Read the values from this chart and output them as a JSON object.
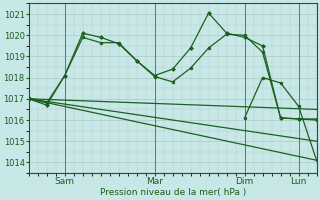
{
  "background_color": "#c8e8e8",
  "plot_bg_color": "#c8e8e8",
  "grid_color": "#b0c8c8",
  "line_color": "#1a6020",
  "xlabel": "Pression niveau de la mer( hPa )",
  "ylim": [
    1013.5,
    1021.5
  ],
  "yticks": [
    1014,
    1015,
    1016,
    1017,
    1018,
    1019,
    1020,
    1021
  ],
  "xlim": [
    0,
    96
  ],
  "series": [
    {
      "x": [
        0,
        96
      ],
      "y": [
        1017.0,
        1014.1
      ],
      "marker": null,
      "linewidth": 0.9
    },
    {
      "x": [
        0,
        96
      ],
      "y": [
        1017.0,
        1015.0
      ],
      "marker": null,
      "linewidth": 0.9
    },
    {
      "x": [
        0,
        96
      ],
      "y": [
        1017.0,
        1016.5
      ],
      "marker": null,
      "linewidth": 0.9
    },
    {
      "x": [
        0,
        6,
        12,
        18,
        24,
        30,
        36,
        42,
        48,
        54,
        60,
        66,
        72,
        78,
        84,
        90,
        96
      ],
      "y": [
        1017.0,
        1016.7,
        1018.1,
        1020.1,
        1019.9,
        1019.6,
        1018.8,
        1018.1,
        1018.4,
        1019.4,
        1021.05,
        1020.1,
        1019.9,
        1019.5,
        1016.1,
        1016.05,
        1016.0
      ],
      "marker": "D",
      "markersize": 2.0,
      "linewidth": 0.9
    },
    {
      "x": [
        0,
        6,
        12,
        18,
        24,
        30,
        36,
        42,
        48,
        54,
        60,
        66,
        72,
        78,
        84,
        90,
        96
      ],
      "y": [
        1017.05,
        1016.8,
        1018.1,
        1019.9,
        1019.65,
        1019.65,
        1018.8,
        1018.05,
        1017.8,
        1018.45,
        1019.4,
        1020.05,
        1020.0,
        1019.2,
        1016.1,
        1016.05,
        1016.05
      ],
      "marker": "o",
      "markersize": 2.0,
      "linewidth": 0.9
    },
    {
      "x": [
        72,
        78,
        84,
        90,
        96
      ],
      "y": [
        1016.1,
        1018.0,
        1017.75,
        1016.65,
        1014.1
      ],
      "marker": "o",
      "markersize": 2.0,
      "linewidth": 0.9
    }
  ],
  "vlines_x": [
    12,
    42,
    72,
    90
  ],
  "xtick_positions": [
    12,
    42,
    72,
    90
  ],
  "xtick_labels": [
    "Sam",
    "Mar",
    "Dim",
    "Lun"
  ]
}
